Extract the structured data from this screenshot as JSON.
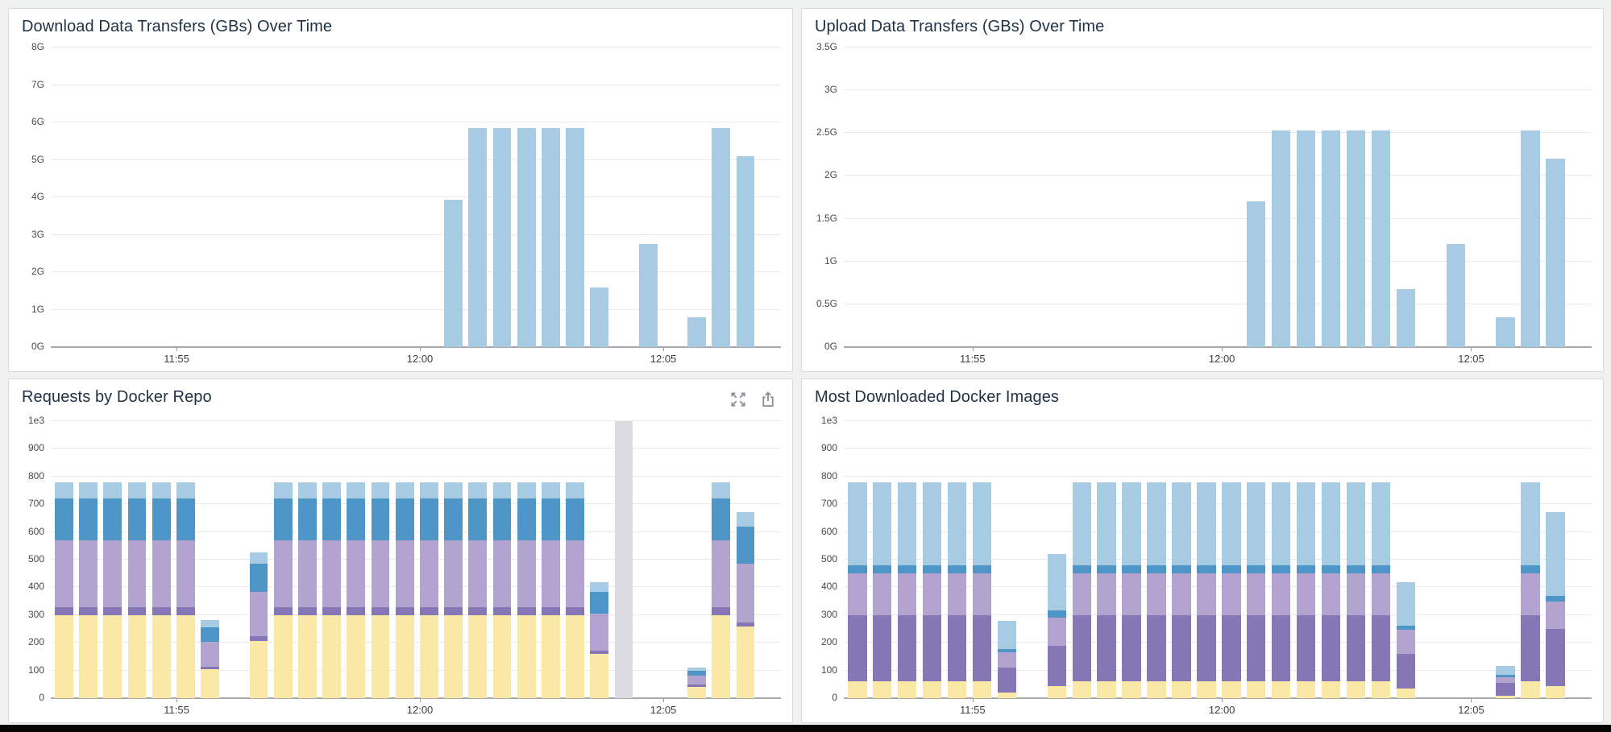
{
  "window": {
    "background": "#eff0f0",
    "footer_color": "#050505"
  },
  "colors": {
    "panel_bg": "#ffffff",
    "panel_border": "#dadada",
    "title_text": "#213247",
    "axis_text": "#4a4a4a",
    "tick_text": "#3d3d3d",
    "grid": "#eaeaea",
    "baseline": "#a9a9a9",
    "icon_gray": "#8b9298",
    "single_bar": "#a6cbe3",
    "other_bar": "#dcdbe1",
    "series": [
      {
        "name": "yellow",
        "hex": "#fae9a6"
      },
      {
        "name": "dark-purple",
        "hex": "#8577b6"
      },
      {
        "name": "lavender",
        "hex": "#b2a4ce"
      },
      {
        "name": "blue",
        "hex": "#4e96c8"
      },
      {
        "name": "light-blue",
        "hex": "#a6cbe3"
      }
    ]
  },
  "time_axis": {
    "start": "11:52:25",
    "end": "12:07:25",
    "ticks": [
      {
        "label": "11:55",
        "time": "11:55:00"
      },
      {
        "label": "12:00",
        "time": "12:00:00"
      },
      {
        "label": "12:05",
        "time": "12:05:00"
      }
    ]
  },
  "chart_data": [
    {
      "id": "download-transfers",
      "type": "bar",
      "title": "Download Data Transfers (GBs) Over Time",
      "y_axis": {
        "labels": [
          "8G",
          "7G",
          "6G",
          "5G",
          "4G",
          "3G",
          "2G",
          "1G",
          "0G"
        ],
        "max": 8
      },
      "bars": [
        {
          "time": "12:00:30",
          "value": 3.93
        },
        {
          "time": "12:01:00",
          "value": 5.85
        },
        {
          "time": "12:01:30",
          "value": 5.85
        },
        {
          "time": "12:02:00",
          "value": 5.85
        },
        {
          "time": "12:02:30",
          "value": 5.85
        },
        {
          "time": "12:03:00",
          "value": 5.85
        },
        {
          "time": "12:03:30",
          "value": 1.6
        },
        {
          "time": "12:04:30",
          "value": 2.75
        },
        {
          "time": "12:05:30",
          "value": 0.8
        },
        {
          "time": "12:06:00",
          "value": 5.85
        },
        {
          "time": "12:06:30",
          "value": 5.1
        }
      ]
    },
    {
      "id": "upload-transfers",
      "type": "bar",
      "title": "Upload Data Transfers (GBs) Over Time",
      "y_axis": {
        "labels": [
          "3.5G",
          "3G",
          "2.5G",
          "2G",
          "1.5G",
          "1G",
          "0.5G",
          "0G"
        ],
        "max": 3.5
      },
      "bars": [
        {
          "time": "12:00:30",
          "value": 1.7
        },
        {
          "time": "12:01:00",
          "value": 2.53
        },
        {
          "time": "12:01:30",
          "value": 2.53
        },
        {
          "time": "12:02:00",
          "value": 2.53
        },
        {
          "time": "12:02:30",
          "value": 2.53
        },
        {
          "time": "12:03:00",
          "value": 2.53
        },
        {
          "time": "12:03:30",
          "value": 0.68
        },
        {
          "time": "12:04:30",
          "value": 1.2
        },
        {
          "time": "12:05:30",
          "value": 0.35
        },
        {
          "time": "12:06:00",
          "value": 2.53
        },
        {
          "time": "12:06:30",
          "value": 2.2
        }
      ]
    },
    {
      "id": "requests-by-repo",
      "type": "stacked_bar",
      "title": "Requests by Docker Repo",
      "header_icons": [
        "expand-icon",
        "share-icon"
      ],
      "y_axis": {
        "labels": [
          "1e3",
          "900",
          "800",
          "700",
          "600",
          "500",
          "400",
          "300",
          "200",
          "100",
          "0"
        ],
        "max": 1000
      },
      "segment_order": [
        "yellow",
        "dark-purple",
        "lavender",
        "blue",
        "light-blue"
      ],
      "bars": [
        {
          "time": "11:52:30",
          "segments": [
            300,
            30,
            240,
            150,
            60
          ]
        },
        {
          "time": "11:53:00",
          "segments": [
            300,
            30,
            240,
            150,
            60
          ]
        },
        {
          "time": "11:53:30",
          "segments": [
            300,
            30,
            240,
            150,
            60
          ]
        },
        {
          "time": "11:54:00",
          "segments": [
            300,
            30,
            240,
            150,
            60
          ]
        },
        {
          "time": "11:54:30",
          "segments": [
            300,
            30,
            240,
            150,
            60
          ]
        },
        {
          "time": "11:55:00",
          "segments": [
            300,
            30,
            240,
            150,
            60
          ]
        },
        {
          "time": "11:55:30",
          "segments": [
            105,
            8,
            92,
            50,
            26
          ]
        },
        {
          "time": "11:56:30",
          "segments": [
            205,
            20,
            160,
            100,
            40
          ]
        },
        {
          "time": "11:57:00",
          "segments": [
            300,
            30,
            240,
            150,
            60
          ]
        },
        {
          "time": "11:57:30",
          "segments": [
            300,
            30,
            240,
            150,
            60
          ]
        },
        {
          "time": "11:58:00",
          "segments": [
            300,
            30,
            240,
            150,
            60
          ]
        },
        {
          "time": "11:58:30",
          "segments": [
            300,
            30,
            240,
            150,
            60
          ]
        },
        {
          "time": "11:59:00",
          "segments": [
            300,
            30,
            240,
            150,
            60
          ]
        },
        {
          "time": "11:59:30",
          "segments": [
            300,
            30,
            240,
            150,
            60
          ]
        },
        {
          "time": "12:00:00",
          "segments": [
            300,
            30,
            240,
            150,
            60
          ]
        },
        {
          "time": "12:00:30",
          "segments": [
            300,
            30,
            240,
            150,
            60
          ]
        },
        {
          "time": "12:01:00",
          "segments": [
            300,
            30,
            240,
            150,
            60
          ]
        },
        {
          "time": "12:01:30",
          "segments": [
            300,
            30,
            240,
            150,
            60
          ]
        },
        {
          "time": "12:02:00",
          "segments": [
            300,
            30,
            240,
            150,
            60
          ]
        },
        {
          "time": "12:02:30",
          "segments": [
            300,
            30,
            240,
            150,
            60
          ]
        },
        {
          "time": "12:03:00",
          "segments": [
            300,
            30,
            240,
            150,
            60
          ]
        },
        {
          "time": "12:03:30",
          "segments": [
            160,
            12,
            133,
            78,
            35
          ]
        },
        {
          "time": "12:04:00",
          "special": "other",
          "value": 1000
        },
        {
          "time": "12:05:30",
          "segments": [
            42,
            8,
            32,
            18,
            12
          ]
        },
        {
          "time": "12:06:00",
          "segments": [
            300,
            30,
            240,
            150,
            60
          ]
        },
        {
          "time": "12:06:30",
          "segments": [
            258,
            15,
            213,
            132,
            54
          ]
        }
      ]
    },
    {
      "id": "most-downloaded-images",
      "type": "stacked_bar",
      "title": "Most Downloaded Docker Images",
      "y_axis": {
        "labels": [
          "1e3",
          "900",
          "800",
          "700",
          "600",
          "500",
          "400",
          "300",
          "200",
          "100",
          "0"
        ],
        "max": 1000
      },
      "segment_order": [
        "yellow",
        "dark-purple",
        "lavender",
        "blue",
        "light-blue"
      ],
      "bars": [
        {
          "time": "11:52:30",
          "segments": [
            60,
            240,
            152,
            28,
            300
          ]
        },
        {
          "time": "11:53:00",
          "segments": [
            60,
            240,
            152,
            28,
            300
          ]
        },
        {
          "time": "11:53:30",
          "segments": [
            60,
            240,
            152,
            28,
            300
          ]
        },
        {
          "time": "11:54:00",
          "segments": [
            60,
            240,
            152,
            28,
            300
          ]
        },
        {
          "time": "11:54:30",
          "segments": [
            60,
            240,
            152,
            28,
            300
          ]
        },
        {
          "time": "11:55:00",
          "segments": [
            60,
            240,
            152,
            28,
            300
          ]
        },
        {
          "time": "11:55:30",
          "segments": [
            20,
            90,
            55,
            13,
            102
          ]
        },
        {
          "time": "11:56:30",
          "segments": [
            45,
            145,
            100,
            28,
            202
          ]
        },
        {
          "time": "11:57:00",
          "segments": [
            60,
            240,
            152,
            28,
            300
          ]
        },
        {
          "time": "11:57:30",
          "segments": [
            60,
            240,
            152,
            28,
            300
          ]
        },
        {
          "time": "11:58:00",
          "segments": [
            60,
            240,
            152,
            28,
            300
          ]
        },
        {
          "time": "11:58:30",
          "segments": [
            60,
            240,
            152,
            28,
            300
          ]
        },
        {
          "time": "11:59:00",
          "segments": [
            60,
            240,
            152,
            28,
            300
          ]
        },
        {
          "time": "11:59:30",
          "segments": [
            60,
            240,
            152,
            28,
            300
          ]
        },
        {
          "time": "12:00:00",
          "segments": [
            60,
            240,
            152,
            28,
            300
          ]
        },
        {
          "time": "12:00:30",
          "segments": [
            60,
            240,
            152,
            28,
            300
          ]
        },
        {
          "time": "12:01:00",
          "segments": [
            60,
            240,
            152,
            28,
            300
          ]
        },
        {
          "time": "12:01:30",
          "segments": [
            60,
            240,
            152,
            28,
            300
          ]
        },
        {
          "time": "12:02:00",
          "segments": [
            60,
            240,
            152,
            28,
            300
          ]
        },
        {
          "time": "12:02:30",
          "segments": [
            60,
            240,
            152,
            28,
            300
          ]
        },
        {
          "time": "12:03:00",
          "segments": [
            60,
            240,
            152,
            28,
            300
          ]
        },
        {
          "time": "12:03:30",
          "segments": [
            35,
            125,
            88,
            15,
            155
          ]
        },
        {
          "time": "12:05:30",
          "segments": [
            10,
            45,
            20,
            10,
            30
          ]
        },
        {
          "time": "12:06:00",
          "segments": [
            60,
            240,
            152,
            28,
            300
          ]
        },
        {
          "time": "12:06:30",
          "segments": [
            45,
            205,
            100,
            18,
            304
          ]
        }
      ]
    }
  ]
}
